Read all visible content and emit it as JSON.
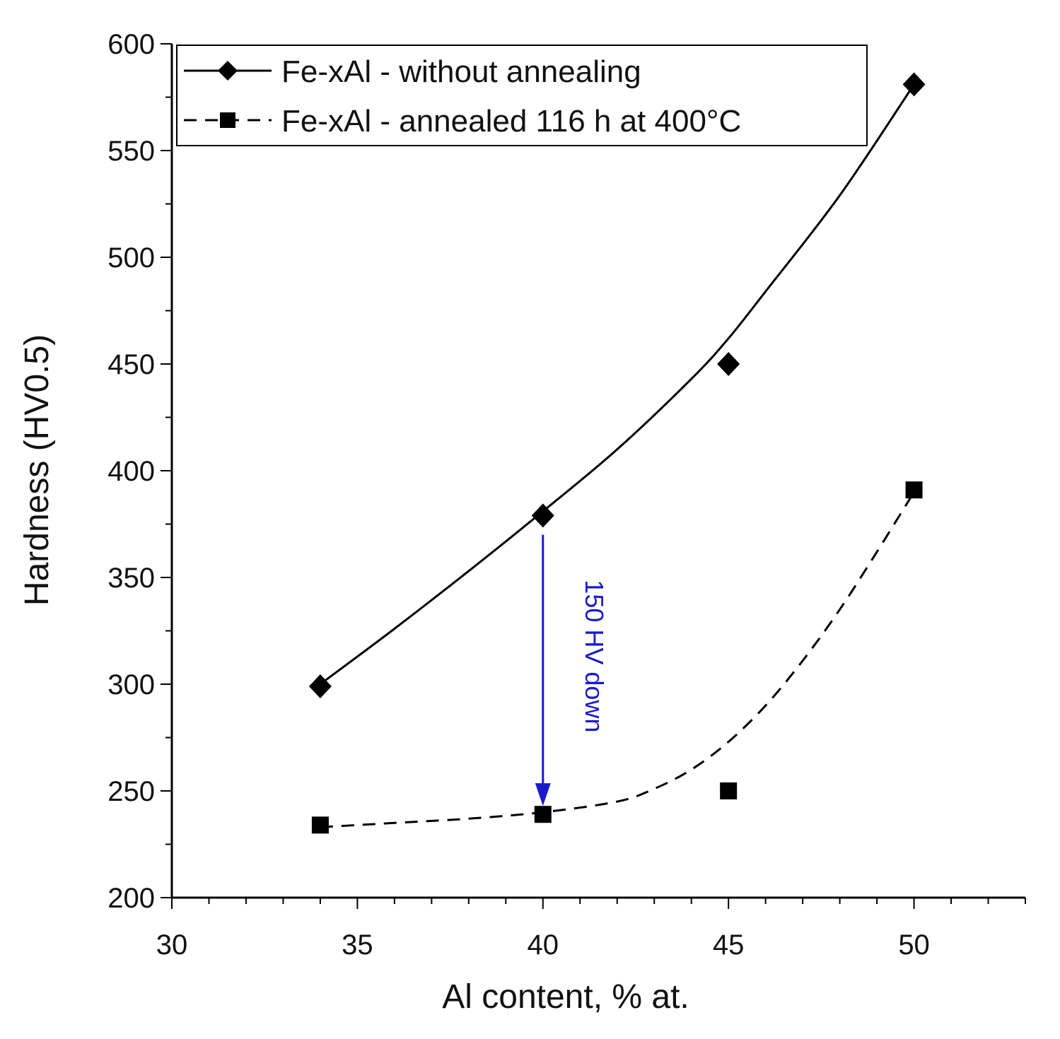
{
  "chart_data": {
    "type": "scatter",
    "title": "",
    "xlabel": "Al content, % at.",
    "ylabel": "Hardness (HV0.5)",
    "xlim": [
      30,
      53
    ],
    "ylim": [
      200,
      600
    ],
    "xticks": [
      30,
      35,
      40,
      45,
      50
    ],
    "yticks": [
      200,
      250,
      300,
      350,
      400,
      450,
      500,
      550,
      600
    ],
    "legend_position": "top-left",
    "grid": false,
    "series": [
      {
        "name": "Fe-xAl - without annealing",
        "marker": "diamond",
        "line_style": "solid",
        "color": "#000000",
        "x": [
          34,
          40,
          45,
          50
        ],
        "y": [
          299,
          379,
          450,
          581
        ],
        "fit_curve": {
          "x": [
            34,
            36,
            38,
            40,
            42,
            44,
            45,
            46,
            48,
            50
          ],
          "y": [
            300,
            326,
            353,
            381,
            410,
            443,
            462,
            484,
            529,
            581
          ]
        }
      },
      {
        "name": "Fe-xAl - annealed 116 h at 400°C",
        "marker": "square",
        "line_style": "dashed",
        "color": "#000000",
        "x": [
          34,
          40,
          45,
          50
        ],
        "y": [
          234,
          239,
          250,
          391
        ],
        "fit_curve": {
          "x": [
            34,
            36,
            38,
            40,
            42,
            43,
            44,
            45,
            46,
            47,
            48,
            49,
            50
          ],
          "y": [
            233,
            235,
            237,
            240,
            245,
            251,
            260,
            273,
            290,
            311,
            335,
            362,
            390
          ]
        }
      }
    ],
    "annotations": [
      {
        "text": "150 HV down",
        "color": "#1a1acc",
        "arrow": {
          "x": 40,
          "y_from": 370,
          "y_to": 243
        }
      }
    ]
  }
}
